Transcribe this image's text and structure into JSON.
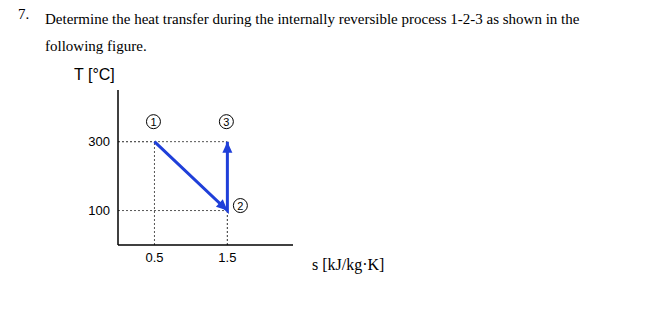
{
  "question": {
    "number": "7.",
    "text": "Determine the heat transfer during the internally reversible process 1-2-3 as shown in the following figure."
  },
  "chart_data": {
    "type": "line",
    "x_label": "s [kJ/kg·K]",
    "y_label": "T [°C]",
    "x": [
      0.5,
      1.5,
      1.5
    ],
    "values": [
      300,
      100,
      300
    ],
    "point_labels": [
      "1",
      "2",
      "3"
    ],
    "xlim": [
      0,
      2.4
    ],
    "ylim": [
      0,
      450
    ],
    "xticks": [
      0.5,
      1.5
    ],
    "yticks": [
      100,
      300
    ],
    "color": "#1f3fd9",
    "grid": false,
    "marker": "arrow",
    "line_style": "solid"
  }
}
